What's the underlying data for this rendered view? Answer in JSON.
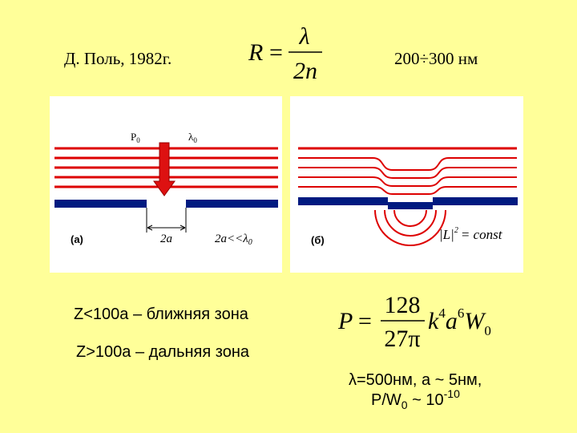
{
  "header": {
    "author": "Д. Поль, 1982г.",
    "range": "200÷300 нм"
  },
  "formula_r": {
    "lhs": "R",
    "eq": "=",
    "num": "λ",
    "den": "2n"
  },
  "panel_a": {
    "power": "P",
    "power_sub": "0",
    "wavelength": "λ",
    "wavelength_sub": "0",
    "tag": "(а)",
    "aperture": "2a",
    "condition": "2a<<λ",
    "condition_sub": "0"
  },
  "panel_b": {
    "tag": "(б)",
    "field": "|L|",
    "field_sup": "2",
    "rest": "= const"
  },
  "zones": [
    "Z<100a – ближняя зона",
    "Z>100a – дальняя зона"
  ],
  "formula_p": {
    "lhs": "P",
    "eq": "=",
    "num": "128",
    "den": "27π",
    "k": "k",
    "k_exp": "4",
    "a": "a",
    "a_exp": "6",
    "w": "W",
    "w_sub": "0"
  },
  "estimate": {
    "line1": "λ=500нм, a ~ 5нм,",
    "ratio": "P/W",
    "ratio_sub": "0",
    "approx": " ~ 10",
    "exp": "-10"
  }
}
